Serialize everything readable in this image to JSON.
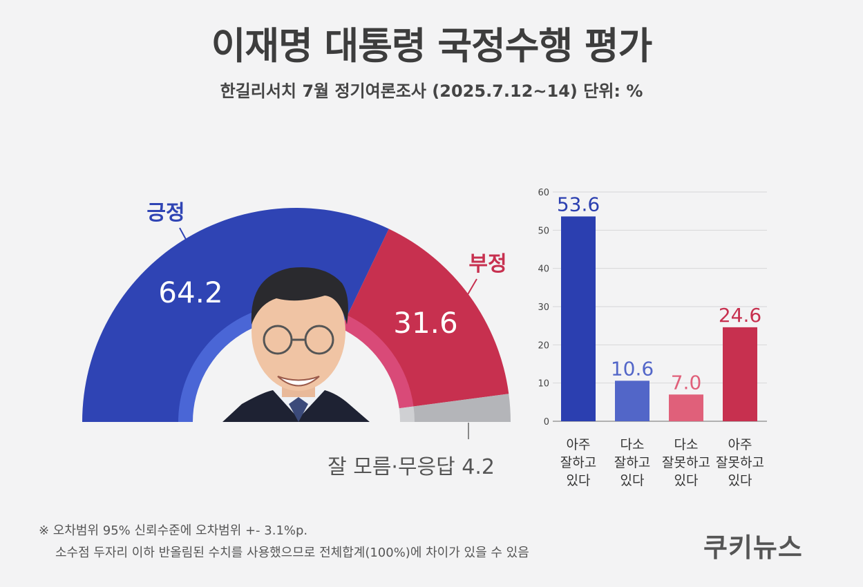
{
  "title": "이재명 대통령 국정수행 평가",
  "subtitle": "한길리서치 7월 정기여론조사 (2025.7.12~14) 단위: %",
  "chart_data": [
    {
      "type": "pie",
      "shape": "half-donut",
      "slices": [
        {
          "label": "긍정",
          "value": 64.2,
          "color": "#2f44b4"
        },
        {
          "label": "부정",
          "value": 31.6,
          "color": "#c7304f"
        },
        {
          "label": "잘 모름·무응답",
          "value": 4.2,
          "color": "#b4b5b9"
        }
      ],
      "labels": {
        "positive_name": "긍정",
        "positive_value": "64.2",
        "negative_name": "부정",
        "negative_value": "31.6",
        "unknown_text": "잘 모름·무응답 4.2"
      }
    },
    {
      "type": "bar",
      "categories": [
        "아주 잘하고 있다",
        "다소 잘하고 있다",
        "다소 잘못하고 있다",
        "아주 잘못하고 있다"
      ],
      "category_lines": [
        [
          "아주",
          "잘하고",
          "있다"
        ],
        [
          "다소",
          "잘하고",
          "있다"
        ],
        [
          "다소",
          "잘못하고",
          "있다"
        ],
        [
          "아주",
          "잘못하고",
          "있다"
        ]
      ],
      "values": [
        53.6,
        10.6,
        7.0,
        24.6
      ],
      "value_labels": [
        "53.6",
        "10.6",
        "7.0",
        "24.6"
      ],
      "colors": [
        "#2b3fb0",
        "#5266c8",
        "#e0607a",
        "#c7304f"
      ],
      "yticks": [
        "0",
        "10",
        "20",
        "30",
        "40",
        "50",
        "60"
      ],
      "ylim": [
        0,
        60
      ]
    }
  ],
  "notes": {
    "line1": "※ 오차범위 95% 신뢰수준에 오차범위 +- 3.1%p.",
    "line2": "소수점 두자리 이하 반올림된 수치를 사용했으므로 전체합계(100%)에 차이가 있을 수 있음"
  },
  "logo": "쿠키뉴스"
}
